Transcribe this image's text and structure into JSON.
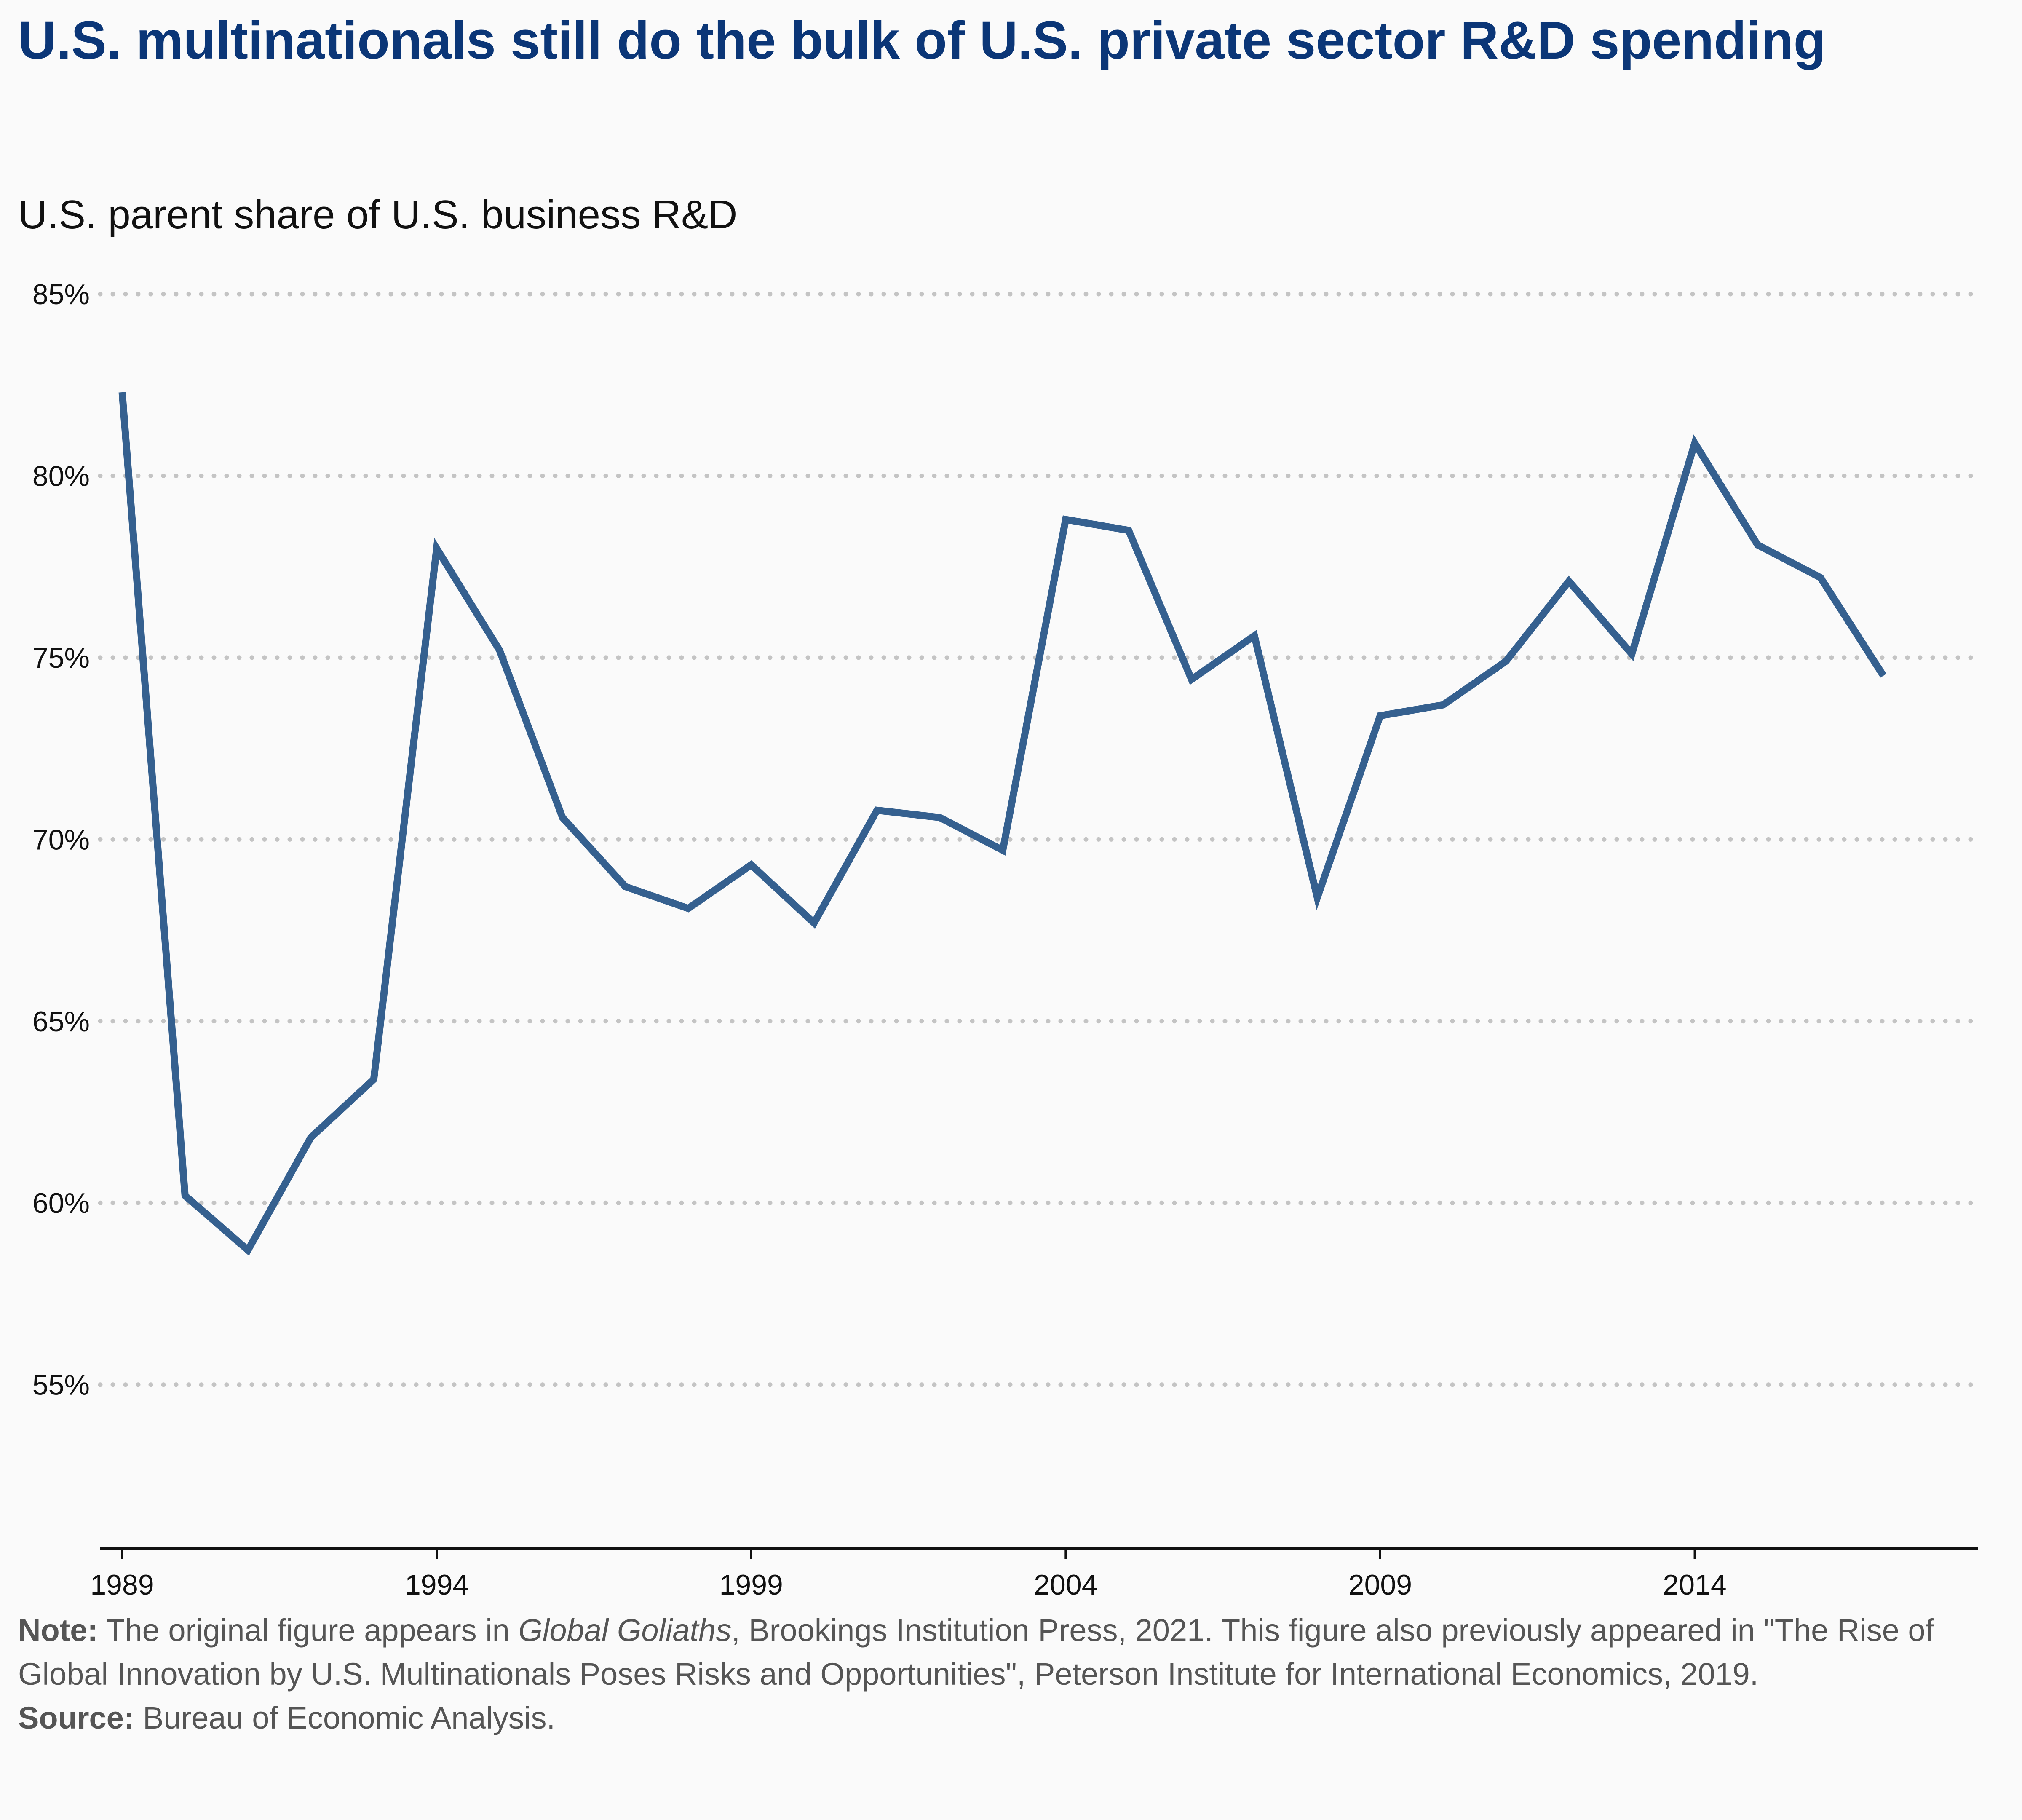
{
  "title": "U.S. multinationals still do the bulk of U.S. private sector R&D spending",
  "subtitle": "U.S. parent share of U.S. business R&D",
  "colors": {
    "line": "#35608f",
    "title": "#0b3677",
    "grid": "#c4c4c4",
    "axis": "#111111",
    "footer": "#555555",
    "background": "#fafafa"
  },
  "chart_data": {
    "type": "line",
    "title": "U.S. multinationals still do the bulk of U.S. private sector R&D spending",
    "subtitle": "U.S. parent share of U.S. business R&D",
    "xlabel": "",
    "ylabel": "",
    "x": [
      1989,
      1990,
      1991,
      1992,
      1993,
      1994,
      1995,
      1996,
      1997,
      1998,
      1999,
      2000,
      2001,
      2002,
      2003,
      2004,
      2005,
      2006,
      2007,
      2008,
      2009,
      2010,
      2011,
      2012,
      2013,
      2014,
      2015,
      2016,
      2017
    ],
    "series": [
      {
        "values": [
          82.3,
          60.2,
          58.7,
          61.8,
          63.4,
          78.0,
          75.2,
          70.6,
          68.7,
          68.1,
          69.3,
          67.7,
          70.8,
          70.6,
          69.7,
          78.8,
          78.5,
          74.4,
          75.6,
          68.4,
          73.4,
          73.7,
          74.9,
          77.1,
          75.1,
          80.9,
          78.1,
          77.2,
          74.5
        ]
      }
    ],
    "xlim": [
      1989,
      2018.5
    ],
    "ylim": [
      50.5,
      85
    ],
    "x_ticks": [
      "1989",
      "1994",
      "1999",
      "2004",
      "2009",
      "2014"
    ],
    "y_ticks": [
      "55%",
      "60%",
      "65%",
      "70%",
      "75%",
      "80%",
      "85%"
    ],
    "grid": "horizontal dotted",
    "legend": "none"
  },
  "footer": {
    "note_label": "Note:",
    "note_text_1": "The original figure appears in",
    "note_book": "Global Goliaths",
    "note_text_2": ", Brookings Institution Press, 2021. This figure also previously appeared in \"The Rise of Global Innovation by U.S. Multinationals Poses Risks and Opportunities\", Peterson Institute for International Economics, 2019.",
    "source_label": "Source:",
    "source_text": "Bureau of Economic Analysis."
  }
}
